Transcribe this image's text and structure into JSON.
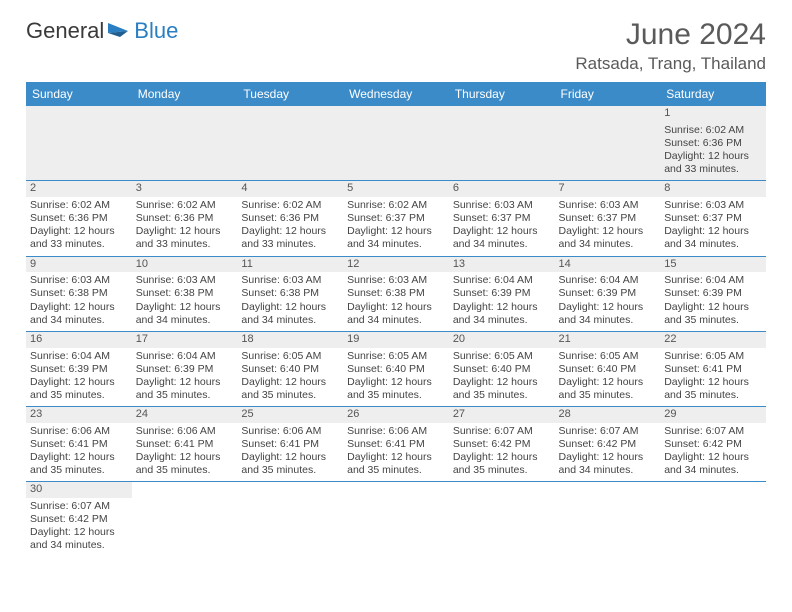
{
  "logo": {
    "part1": "General",
    "part2": "Blue"
  },
  "title": "June 2024",
  "location": "Ratsada, Trang, Thailand",
  "weekdays": [
    "Sunday",
    "Monday",
    "Tuesday",
    "Wednesday",
    "Thursday",
    "Friday",
    "Saturday"
  ],
  "colors": {
    "header_bg": "#3b8bc9",
    "header_text": "#ffffff",
    "daynum_bg": "#eeeeee",
    "border": "#3b8bc9",
    "logo_blue": "#2a7ec2",
    "text": "#444444"
  },
  "weeks": [
    [
      null,
      null,
      null,
      null,
      null,
      null,
      {
        "n": "1",
        "sr": "6:02 AM",
        "ss": "6:36 PM",
        "dl": "12 hours and 33 minutes."
      }
    ],
    [
      {
        "n": "2",
        "sr": "6:02 AM",
        "ss": "6:36 PM",
        "dl": "12 hours and 33 minutes."
      },
      {
        "n": "3",
        "sr": "6:02 AM",
        "ss": "6:36 PM",
        "dl": "12 hours and 33 minutes."
      },
      {
        "n": "4",
        "sr": "6:02 AM",
        "ss": "6:36 PM",
        "dl": "12 hours and 33 minutes."
      },
      {
        "n": "5",
        "sr": "6:02 AM",
        "ss": "6:37 PM",
        "dl": "12 hours and 34 minutes."
      },
      {
        "n": "6",
        "sr": "6:03 AM",
        "ss": "6:37 PM",
        "dl": "12 hours and 34 minutes."
      },
      {
        "n": "7",
        "sr": "6:03 AM",
        "ss": "6:37 PM",
        "dl": "12 hours and 34 minutes."
      },
      {
        "n": "8",
        "sr": "6:03 AM",
        "ss": "6:37 PM",
        "dl": "12 hours and 34 minutes."
      }
    ],
    [
      {
        "n": "9",
        "sr": "6:03 AM",
        "ss": "6:38 PM",
        "dl": "12 hours and 34 minutes."
      },
      {
        "n": "10",
        "sr": "6:03 AM",
        "ss": "6:38 PM",
        "dl": "12 hours and 34 minutes."
      },
      {
        "n": "11",
        "sr": "6:03 AM",
        "ss": "6:38 PM",
        "dl": "12 hours and 34 minutes."
      },
      {
        "n": "12",
        "sr": "6:03 AM",
        "ss": "6:38 PM",
        "dl": "12 hours and 34 minutes."
      },
      {
        "n": "13",
        "sr": "6:04 AM",
        "ss": "6:39 PM",
        "dl": "12 hours and 34 minutes."
      },
      {
        "n": "14",
        "sr": "6:04 AM",
        "ss": "6:39 PM",
        "dl": "12 hours and 34 minutes."
      },
      {
        "n": "15",
        "sr": "6:04 AM",
        "ss": "6:39 PM",
        "dl": "12 hours and 35 minutes."
      }
    ],
    [
      {
        "n": "16",
        "sr": "6:04 AM",
        "ss": "6:39 PM",
        "dl": "12 hours and 35 minutes."
      },
      {
        "n": "17",
        "sr": "6:04 AM",
        "ss": "6:39 PM",
        "dl": "12 hours and 35 minutes."
      },
      {
        "n": "18",
        "sr": "6:05 AM",
        "ss": "6:40 PM",
        "dl": "12 hours and 35 minutes."
      },
      {
        "n": "19",
        "sr": "6:05 AM",
        "ss": "6:40 PM",
        "dl": "12 hours and 35 minutes."
      },
      {
        "n": "20",
        "sr": "6:05 AM",
        "ss": "6:40 PM",
        "dl": "12 hours and 35 minutes."
      },
      {
        "n": "21",
        "sr": "6:05 AM",
        "ss": "6:40 PM",
        "dl": "12 hours and 35 minutes."
      },
      {
        "n": "22",
        "sr": "6:05 AM",
        "ss": "6:41 PM",
        "dl": "12 hours and 35 minutes."
      }
    ],
    [
      {
        "n": "23",
        "sr": "6:06 AM",
        "ss": "6:41 PM",
        "dl": "12 hours and 35 minutes."
      },
      {
        "n": "24",
        "sr": "6:06 AM",
        "ss": "6:41 PM",
        "dl": "12 hours and 35 minutes."
      },
      {
        "n": "25",
        "sr": "6:06 AM",
        "ss": "6:41 PM",
        "dl": "12 hours and 35 minutes."
      },
      {
        "n": "26",
        "sr": "6:06 AM",
        "ss": "6:41 PM",
        "dl": "12 hours and 35 minutes."
      },
      {
        "n": "27",
        "sr": "6:07 AM",
        "ss": "6:42 PM",
        "dl": "12 hours and 35 minutes."
      },
      {
        "n": "28",
        "sr": "6:07 AM",
        "ss": "6:42 PM",
        "dl": "12 hours and 34 minutes."
      },
      {
        "n": "29",
        "sr": "6:07 AM",
        "ss": "6:42 PM",
        "dl": "12 hours and 34 minutes."
      }
    ],
    [
      {
        "n": "30",
        "sr": "6:07 AM",
        "ss": "6:42 PM",
        "dl": "12 hours and 34 minutes."
      },
      null,
      null,
      null,
      null,
      null,
      null
    ]
  ],
  "labels": {
    "sunrise": "Sunrise:",
    "sunset": "Sunset:",
    "daylight": "Daylight:"
  }
}
